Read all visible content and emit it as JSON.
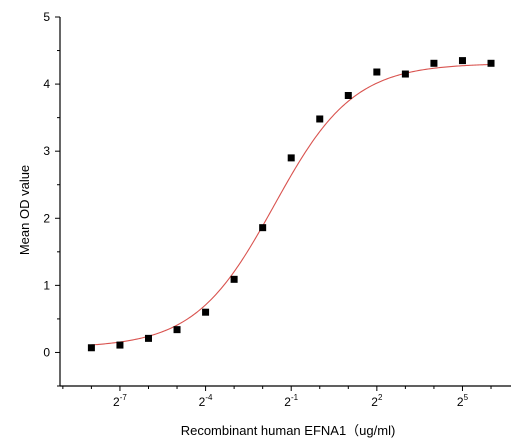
{
  "chart_data": {
    "type": "scatter",
    "title": "",
    "xlabel": "Recombinant human  EFNA1（ug/ml)",
    "ylabel": "Mean OD value",
    "x_scale": "log2",
    "x_tick_values_log2": [
      -7,
      -4,
      -1,
      2,
      5
    ],
    "x_tick_labels": [
      {
        "base": "2",
        "exp": "-7"
      },
      {
        "base": "2",
        "exp": "-4"
      },
      {
        "base": "2",
        "exp": "-1"
      },
      {
        "base": "2",
        "exp": "2"
      },
      {
        "base": "2",
        "exp": "5"
      }
    ],
    "xlim_log2": [
      -9.1,
      6.7
    ],
    "ylim": [
      -0.5,
      5
    ],
    "y_ticks": [
      0,
      1,
      2,
      3,
      4,
      5
    ],
    "grid": false,
    "legend": "none",
    "colors": {
      "points": "#000000",
      "curve": "#d9534f"
    },
    "series": [
      {
        "x_log2": [
          -8,
          -7,
          -6,
          -5,
          -4,
          -3,
          -2,
          -1,
          0,
          1,
          2,
          3,
          4,
          5,
          6
        ],
        "y": [
          0.07,
          0.11,
          0.21,
          0.34,
          0.6,
          1.09,
          1.86,
          2.9,
          3.48,
          3.83,
          4.18,
          4.15,
          4.31,
          4.35,
          4.31
        ]
      }
    ],
    "fit_curve": {
      "model": "4PL",
      "bottom": 0.07,
      "top": 4.31,
      "ec50_log2": -1.6,
      "hill_slope_log2": 0.72
    }
  }
}
